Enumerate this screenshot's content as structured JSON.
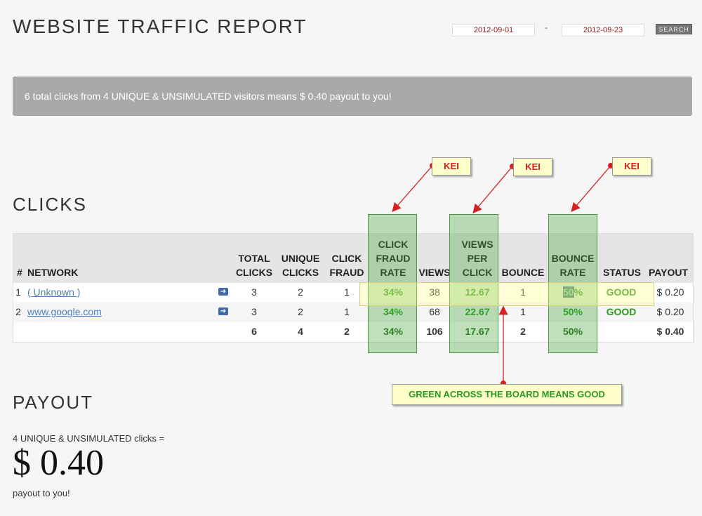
{
  "header": {
    "title": "WEBSITE TRAFFIC REPORT",
    "date_from": "2012-09-01",
    "date_sep": "-",
    "date_to": "2012-09-23",
    "search_label": "SEARCH"
  },
  "banner": {
    "text": "6 total clicks from 4 UNIQUE & UNSIMULATED visitors means $ 0.40 payout to you!"
  },
  "clicks": {
    "heading": "CLICKS",
    "columns": {
      "idx": "#",
      "network": "NETWORK",
      "total_1": "TOTAL",
      "total_2": "CLICKS",
      "unique_1": "UNIQUE",
      "unique_2": "CLICKS",
      "fraud_1": "CLICK",
      "fraud_2": "FRAUD",
      "fraudrate_1": "CLICK",
      "fraudrate_2": "FRAUD",
      "fraudrate_3": "RATE",
      "views": "VIEWS",
      "vpc_1": "VIEWS",
      "vpc_2": "PER",
      "vpc_3": "CLICK",
      "bounce": "BOUNCE",
      "brate_1": "BOUNCE",
      "brate_2": "RATE",
      "status": "STATUS",
      "payout": "PAYOUT"
    },
    "rows": [
      {
        "idx": "1",
        "network": "( Unknown )",
        "total": "3",
        "unique": "2",
        "fraud": "1",
        "fraud_rate": "34%",
        "views": "38",
        "vpc": "12.67",
        "bounce": "1",
        "bounce_rate_sel": "50",
        "bounce_rate_rest": "%",
        "status": "GOOD",
        "payout": "$ 0.20"
      },
      {
        "idx": "2",
        "network": "www.google.com",
        "total": "3",
        "unique": "2",
        "fraud": "1",
        "fraud_rate": "34%",
        "views": "68",
        "vpc": "22.67",
        "bounce": "1",
        "bounce_rate": "50%",
        "status": "GOOD",
        "payout": "$ 0.20"
      }
    ],
    "totals": {
      "total": "6",
      "unique": "4",
      "fraud": "2",
      "fraud_rate": "34%",
      "views": "106",
      "vpc": "17.67",
      "bounce": "2",
      "bounce_rate": "50%",
      "payout": "$ 0.40"
    }
  },
  "annotations": {
    "kei_1": "KEI",
    "kei_2": "KEI",
    "kei_3": "KEI",
    "callout": "GREEN ACROSS THE BOARD MEANS GOOD",
    "annotation_color": "#d42020",
    "good_color": "#2a9a1f"
  },
  "payout": {
    "heading": "PAYOUT",
    "line": "4 UNIQUE & UNSIMULATED clicks =",
    "amount": "$ 0.40",
    "sub": "payout to you!"
  }
}
